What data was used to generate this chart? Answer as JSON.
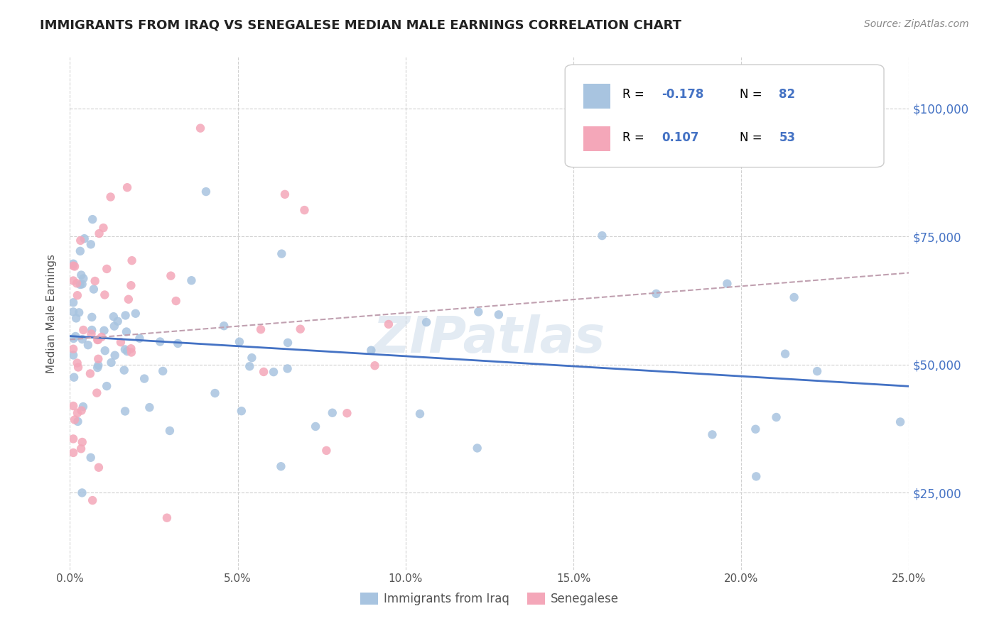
{
  "title": "IMMIGRANTS FROM IRAQ VS SENEGALESE MEDIAN MALE EARNINGS CORRELATION CHART",
  "source": "Source: ZipAtlas.com",
  "ylabel": "Median Male Earnings",
  "xlim": [
    0.0,
    0.25
  ],
  "ylim": [
    10000,
    110000
  ],
  "xtick_labels": [
    "0.0%",
    "5.0%",
    "10.0%",
    "15.0%",
    "20.0%",
    "25.0%"
  ],
  "xtick_vals": [
    0.0,
    0.05,
    0.1,
    0.15,
    0.2,
    0.25
  ],
  "ytick_vals": [
    25000,
    50000,
    75000,
    100000
  ],
  "ytick_labels": [
    "$25,000",
    "$50,000",
    "$75,000",
    "$100,000"
  ],
  "legend1_label": "Immigrants from Iraq",
  "legend2_label": "Senegalese",
  "r1": -0.178,
  "n1": 82,
  "r2": 0.107,
  "n2": 53,
  "color_iraq": "#a8c4e0",
  "color_senegalese": "#f4a7b9",
  "trendline_iraq_color": "#4472c4",
  "trendline_senegalese_color": "#c0a0b0",
  "watermark": "ZIPatlas"
}
